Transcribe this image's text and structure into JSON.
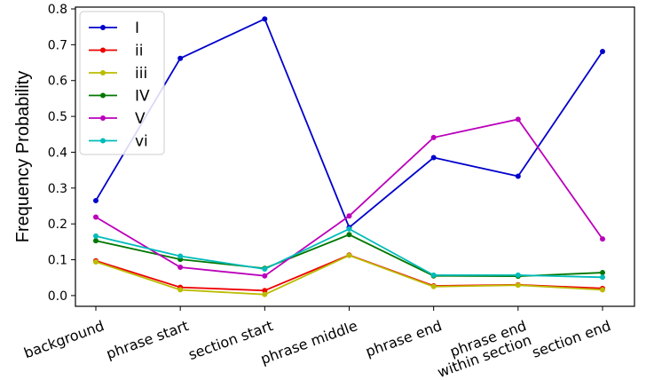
{
  "chart_data": {
    "type": "line",
    "title": "",
    "xlabel": "",
    "ylabel": "Frequency Probability",
    "ylim": [
      -0.03,
      0.805
    ],
    "yticks": [
      "0.0",
      "0.1",
      "0.2",
      "0.3",
      "0.4",
      "0.5",
      "0.6",
      "0.7",
      "0.8"
    ],
    "categories": [
      "background",
      "phrase start",
      "section start",
      "phrase middle",
      "phrase end",
      "phrase end\nwithin section",
      "section end"
    ],
    "legend_position": "top-left",
    "grid": false,
    "series": [
      {
        "name": "I",
        "color": "#0000cc",
        "values": [
          0.265,
          0.662,
          0.772,
          0.19,
          0.385,
          0.333,
          0.681
        ]
      },
      {
        "name": "ii",
        "color": "#ee0000",
        "values": [
          0.097,
          0.023,
          0.014,
          0.113,
          0.027,
          0.03,
          0.02
        ]
      },
      {
        "name": "iii",
        "color": "#bbbb00",
        "values": [
          0.094,
          0.016,
          0.003,
          0.112,
          0.025,
          0.029,
          0.016
        ]
      },
      {
        "name": "IV",
        "color": "#007700",
        "values": [
          0.153,
          0.101,
          0.076,
          0.17,
          0.055,
          0.054,
          0.064
        ]
      },
      {
        "name": "V",
        "color": "#bb00bb",
        "values": [
          0.219,
          0.079,
          0.055,
          0.222,
          0.441,
          0.492,
          0.158
        ]
      },
      {
        "name": "vi",
        "color": "#00bbbb",
        "values": [
          0.166,
          0.11,
          0.074,
          0.186,
          0.057,
          0.057,
          0.051
        ]
      }
    ]
  }
}
